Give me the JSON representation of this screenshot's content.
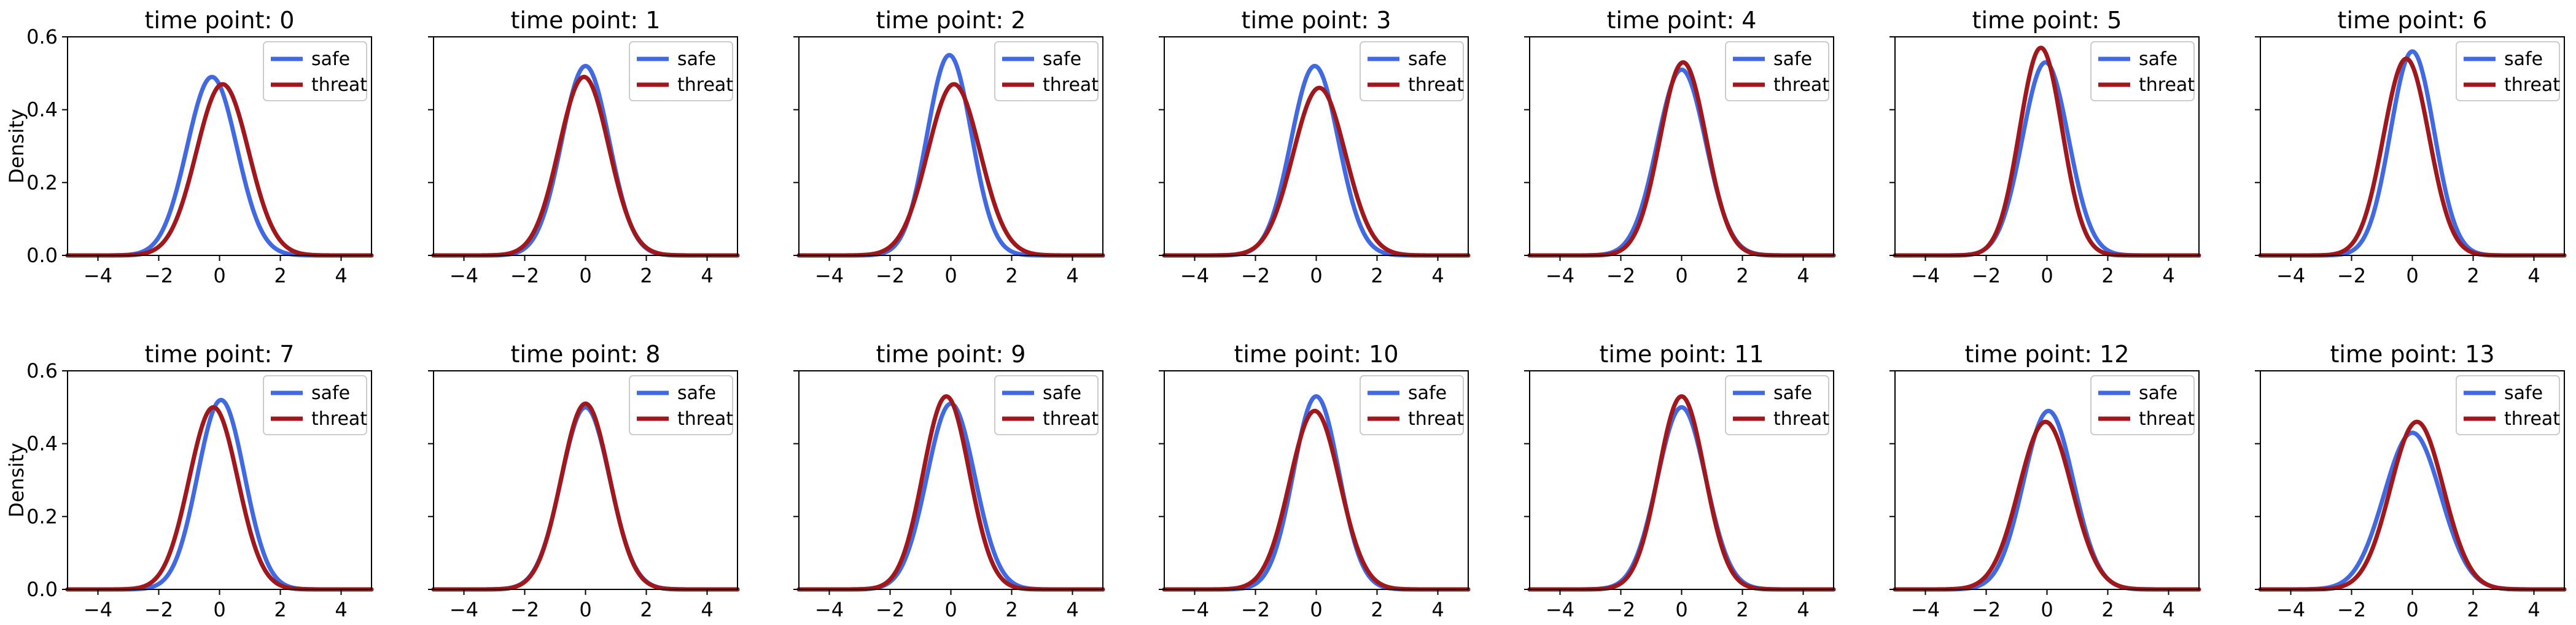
{
  "chart_data": {
    "type": "line",
    "layout": {
      "rows": 2,
      "cols": 7
    },
    "ylabel": "Density",
    "xlim": [
      -5,
      5
    ],
    "ylim": [
      0,
      0.6
    ],
    "xticks": [
      -4,
      -2,
      0,
      2,
      4
    ],
    "yticks": [
      0.0,
      0.2,
      0.4,
      0.6
    ],
    "ytick_labels": [
      "0.0",
      "0.2",
      "0.4",
      "0.6"
    ],
    "legend": {
      "placement": "upper right",
      "entries": [
        "safe",
        "threat"
      ]
    },
    "series_colors": {
      "safe": "#4169e1",
      "threat": "#a0171c"
    },
    "grid": false,
    "panels": [
      {
        "title": "time point: 0",
        "safe": {
          "mu": -0.25,
          "sigma": 0.82,
          "peak": 0.49
        },
        "threat": {
          "mu": 0.1,
          "sigma": 0.86,
          "peak": 0.47
        }
      },
      {
        "title": "time point: 1",
        "safe": {
          "mu": 0.0,
          "sigma": 0.78,
          "peak": 0.52
        },
        "threat": {
          "mu": -0.05,
          "sigma": 0.82,
          "peak": 0.49
        }
      },
      {
        "title": "time point: 2",
        "safe": {
          "mu": -0.05,
          "sigma": 0.73,
          "peak": 0.55
        },
        "threat": {
          "mu": 0.1,
          "sigma": 0.86,
          "peak": 0.47
        }
      },
      {
        "title": "time point: 3",
        "safe": {
          "mu": -0.05,
          "sigma": 0.78,
          "peak": 0.52
        },
        "threat": {
          "mu": 0.1,
          "sigma": 0.86,
          "peak": 0.46
        }
      },
      {
        "title": "time point: 4",
        "safe": {
          "mu": 0.0,
          "sigma": 0.8,
          "peak": 0.51
        },
        "threat": {
          "mu": 0.05,
          "sigma": 0.76,
          "peak": 0.53
        }
      },
      {
        "title": "time point: 5",
        "safe": {
          "mu": -0.05,
          "sigma": 0.76,
          "peak": 0.53
        },
        "threat": {
          "mu": -0.2,
          "sigma": 0.7,
          "peak": 0.57
        }
      },
      {
        "title": "time point: 6",
        "safe": {
          "mu": 0.0,
          "sigma": 0.72,
          "peak": 0.56
        },
        "threat": {
          "mu": -0.2,
          "sigma": 0.75,
          "peak": 0.54
        }
      },
      {
        "title": "time point: 7",
        "safe": {
          "mu": 0.05,
          "sigma": 0.77,
          "peak": 0.52
        },
        "threat": {
          "mu": -0.2,
          "sigma": 0.8,
          "peak": 0.5
        }
      },
      {
        "title": "time point: 8",
        "safe": {
          "mu": 0.0,
          "sigma": 0.8,
          "peak": 0.5
        },
        "threat": {
          "mu": 0.0,
          "sigma": 0.79,
          "peak": 0.51
        }
      },
      {
        "title": "time point: 9",
        "safe": {
          "mu": 0.0,
          "sigma": 0.79,
          "peak": 0.51
        },
        "threat": {
          "mu": -0.15,
          "sigma": 0.76,
          "peak": 0.53
        }
      },
      {
        "title": "time point: 10",
        "safe": {
          "mu": 0.0,
          "sigma": 0.75,
          "peak": 0.53
        },
        "threat": {
          "mu": -0.05,
          "sigma": 0.82,
          "peak": 0.49
        }
      },
      {
        "title": "time point: 11",
        "safe": {
          "mu": 0.0,
          "sigma": 0.8,
          "peak": 0.5
        },
        "threat": {
          "mu": 0.0,
          "sigma": 0.76,
          "peak": 0.53
        }
      },
      {
        "title": "time point: 12",
        "safe": {
          "mu": 0.05,
          "sigma": 0.82,
          "peak": 0.49
        },
        "threat": {
          "mu": -0.05,
          "sigma": 0.87,
          "peak": 0.46
        }
      },
      {
        "title": "time point: 13",
        "safe": {
          "mu": 0.0,
          "sigma": 0.93,
          "peak": 0.43
        },
        "threat": {
          "mu": 0.15,
          "sigma": 0.87,
          "peak": 0.46
        }
      }
    ]
  }
}
